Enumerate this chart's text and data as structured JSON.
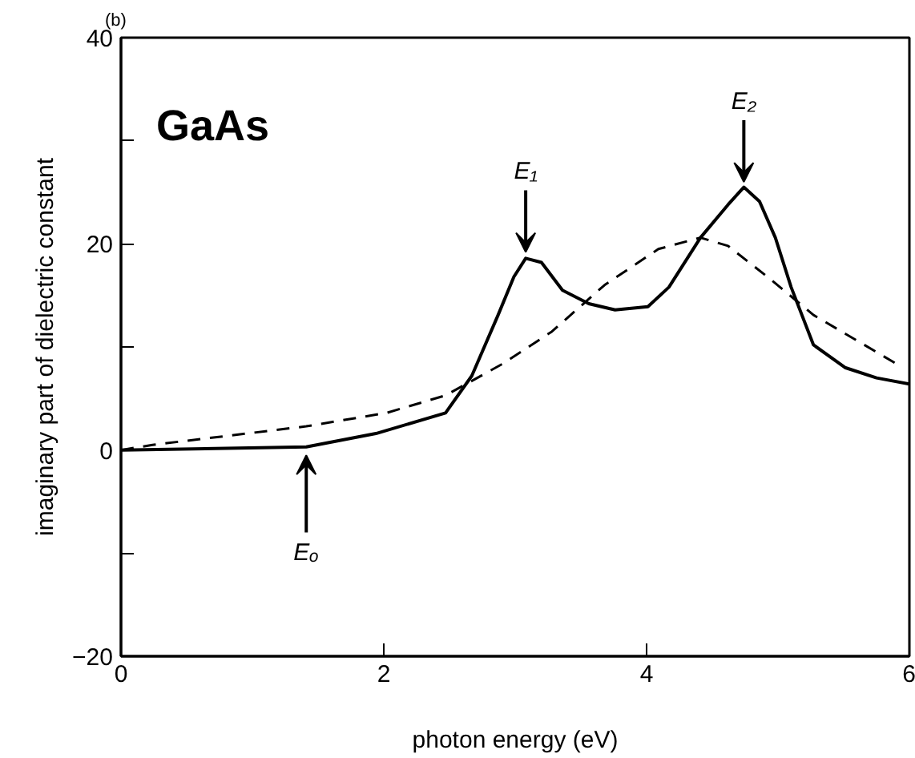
{
  "chart_data": {
    "type": "line",
    "title": "(b)",
    "xlabel": "photon energy (eV)",
    "ylabel": "imaginary part of dielectric constant",
    "xlim": [
      0,
      6
    ],
    "ylim": [
      -20,
      40
    ],
    "xticks": [
      0,
      2,
      4,
      6
    ],
    "yticks": [
      -20,
      {
        "value": -10,
        "label": null
      },
      0,
      {
        "value": 10,
        "label": null
      },
      20,
      {
        "value": 30,
        "label": null
      },
      40
    ],
    "grid": false,
    "series": [
      {
        "color": "#000000",
        "line_style": "solid",
        "x": [
          0,
          1.41,
          1.94,
          2.47,
          2.67,
          2.87,
          2.99,
          3.08,
          3.2,
          3.36,
          3.56,
          3.76,
          4.01,
          4.17,
          4.41,
          4.62,
          4.74,
          4.86,
          4.98,
          5.1,
          5.27,
          5.51,
          5.75,
          6.0
        ],
        "values": [
          0,
          0.3,
          1.6,
          3.6,
          7.2,
          13.1,
          16.8,
          18.6,
          18.2,
          15.5,
          14.2,
          13.6,
          13.9,
          15.8,
          20.6,
          23.8,
          25.5,
          24.1,
          20.6,
          15.8,
          10.2,
          8.0,
          7.0,
          6.4
        ]
      },
      {
        "color": "#000000",
        "line_style": "dashed",
        "x": [
          0,
          0.24,
          1.41,
          2.02,
          2.47,
          2.91,
          3.28,
          3.68,
          4.09,
          4.41,
          4.62,
          4.94,
          5.27,
          5.59,
          5.91
        ],
        "values": [
          0,
          0.5,
          2.3,
          3.6,
          5.3,
          8.4,
          11.5,
          16.0,
          19.5,
          20.6,
          19.8,
          16.6,
          13.1,
          10.7,
          8.3
        ]
      }
    ],
    "annotations": [
      "GaAs",
      {
        "text": "E₁",
        "x": 3.08,
        "y": 19.2
      },
      {
        "text": "E₂",
        "x": 4.74,
        "y": 26.0
      },
      {
        "text": "Eₒ",
        "x": 1.41,
        "y": -0.5
      }
    ]
  }
}
